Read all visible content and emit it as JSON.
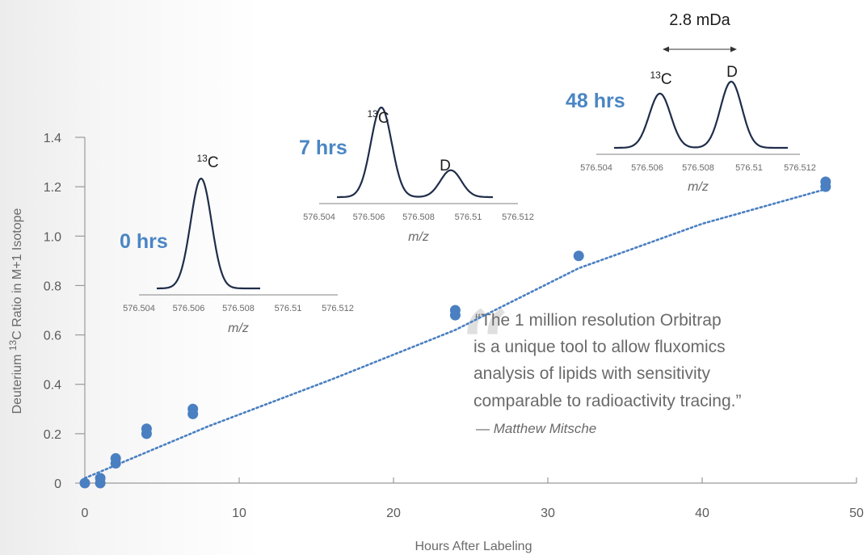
{
  "chart_data": {
    "type": "scatter",
    "xlabel": "Hours After Labeling",
    "ylabel_main": "Deuterium ",
    "ylabel_sup": "13",
    "ylabel_rest": "C Ratio in M+1 Isotope",
    "xlim": [
      0,
      50
    ],
    "ylim": [
      0,
      1.4
    ],
    "x_ticks": [
      0,
      10,
      20,
      30,
      40,
      50
    ],
    "x_tick_labels": [
      "0",
      "10",
      "20",
      "30",
      "40",
      "50"
    ],
    "y_ticks": [
      0,
      0.2,
      0.4,
      0.6,
      0.8,
      1.0,
      1.2,
      1.4
    ],
    "y_tick_labels": [
      "0",
      "0.2",
      "0.4",
      "0.6",
      "0.8",
      "1.0",
      "1.2",
      "1.4"
    ],
    "grid": false,
    "point_color": "#4a7fc1",
    "trend_color": "#4a7fc1",
    "points": [
      {
        "x": 0,
        "y": 0.0
      },
      {
        "x": 1,
        "y": 0.0
      },
      {
        "x": 1,
        "y": 0.02
      },
      {
        "x": 2,
        "y": 0.08
      },
      {
        "x": 2,
        "y": 0.1
      },
      {
        "x": 4,
        "y": 0.2
      },
      {
        "x": 4,
        "y": 0.22
      },
      {
        "x": 7,
        "y": 0.28
      },
      {
        "x": 7,
        "y": 0.3
      },
      {
        "x": 24,
        "y": 0.68
      },
      {
        "x": 24,
        "y": 0.7
      },
      {
        "x": 32,
        "y": 0.92
      },
      {
        "x": 48,
        "y": 1.2
      },
      {
        "x": 48,
        "y": 1.22
      }
    ],
    "trendline": [
      {
        "x": 0,
        "y": 0.02
      },
      {
        "x": 8,
        "y": 0.23
      },
      {
        "x": 16,
        "y": 0.42
      },
      {
        "x": 24,
        "y": 0.62
      },
      {
        "x": 32,
        "y": 0.87
      },
      {
        "x": 40,
        "y": 1.05
      },
      {
        "x": 48,
        "y": 1.19
      }
    ]
  },
  "insets": [
    {
      "time_label": "0 hrs",
      "xlabel": "m/z",
      "tick_labels": [
        "576.504",
        "576.506",
        "576.508",
        "576.51",
        "576.512"
      ],
      "peaks": [
        {
          "label_sup": "13",
          "label": "C",
          "mz": 576.5065,
          "height": 1.0
        }
      ]
    },
    {
      "time_label": "7 hrs",
      "xlabel": "m/z",
      "tick_labels": [
        "576.504",
        "576.506",
        "576.508",
        "576.51",
        "576.512"
      ],
      "peaks": [
        {
          "label_sup": "13",
          "label": "C",
          "mz": 576.5065,
          "height": 1.0
        },
        {
          "label_sup": "",
          "label": "D",
          "mz": 576.5093,
          "height": 0.3
        }
      ]
    },
    {
      "time_label": "48 hrs",
      "xlabel": "m/z",
      "tick_labels": [
        "576.504",
        "576.506",
        "576.508",
        "576.51",
        "576.512"
      ],
      "peaks": [
        {
          "label_sup": "13",
          "label": "C",
          "mz": 576.5065,
          "height": 0.82
        },
        {
          "label_sup": "",
          "label": "D",
          "mz": 576.5093,
          "height": 1.0
        }
      ],
      "annotation": "2.8 mDa"
    }
  ],
  "quote": {
    "mark": "“",
    "lines": [
      "“The 1 million resolution Orbitrap",
      "is a unique tool to allow fluxomics",
      "analysis of lipids with sensitivity",
      "comparable to radioactivity tracing.”"
    ],
    "author": "— Matthew Mitsche"
  }
}
